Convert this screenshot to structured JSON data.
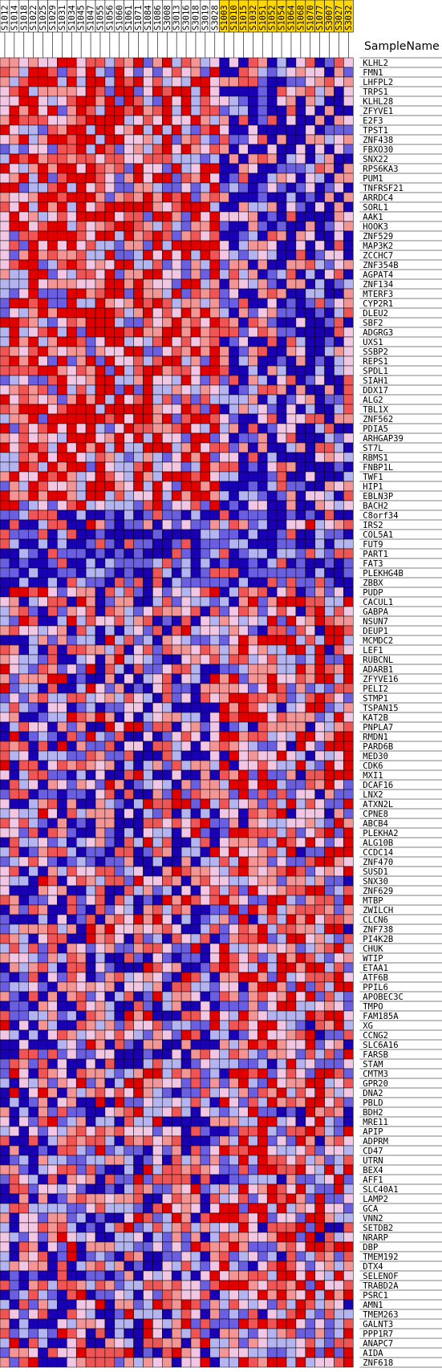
{
  "chart_data": {
    "type": "heatmap",
    "header_label": "SampleName",
    "samples": {
      "group_a": [
        "S1012",
        "S1014",
        "S1018",
        "S1022",
        "S1025",
        "S1029",
        "S1031",
        "S1034",
        "S1045",
        "S1047",
        "S1055",
        "S1056",
        "S1060",
        "S1061",
        "S1071",
        "S1084",
        "S1086",
        "S3008",
        "S3013",
        "S3016",
        "S3018",
        "S3019",
        "S3028"
      ],
      "group_b": [
        "S1003",
        "S1010",
        "S1015",
        "S1032",
        "S1051",
        "S1052",
        "S1054",
        "S1064",
        "S1068",
        "S1070",
        "S1077",
        "S3007",
        "S3027",
        "S3032"
      ]
    },
    "genes": [
      "KLHL2",
      "FMN1",
      "LHFPL2",
      "TRPS1",
      "KLHL28",
      "ZFYVE1",
      "E2F3",
      "TPST1",
      "ZNF438",
      "FBXO30",
      "SNX22",
      "RPS6KA3",
      "PUM1",
      "TNFRSF21",
      "ARRDC4",
      "SORL1",
      "AAK1",
      "HOOK3",
      "ZNF529",
      "MAP3K2",
      "ZCCHC7",
      "ZNF354B",
      "AGPAT4",
      "ZNF134",
      "MTERF3",
      "CYP2R1",
      "DLEU2",
      "SBF2",
      "ADGRG3",
      "UXS1",
      "SSBP2",
      "REPS1",
      "SPDL1",
      "SIAH1",
      "DDX17",
      "ALG2",
      "TBL1X",
      "ZNF562",
      "PDIA5",
      "ARHGAP39",
      "ST7L",
      "RBMS1",
      "FNBP1L",
      "TWF1",
      "HIP1",
      "EBLN3P",
      "BACH2",
      "C8orf34",
      "IRS2",
      "COL5A1",
      "FUT9",
      "PART1",
      "FAT3",
      "PLEKHG4B",
      "ZBBX",
      "PUDP",
      "CACUL1",
      "GABPA",
      "NSUN7",
      "DEUP1",
      "MCMDC2",
      "LEF1",
      "RUBCNL",
      "ADARB1",
      "ZFYVE16",
      "PELI2",
      "STMP1",
      "TSPAN15",
      "KAT2B",
      "PNPLA7",
      "RMDN1",
      "PARD6B",
      "MED30",
      "CDK6",
      "MXI1",
      "DCAF16",
      "LNX2",
      "ATXN2L",
      "CPNE8",
      "ABCB4",
      "PLEKHA2",
      "ALG10B",
      "CCDC14",
      "ZNF470",
      "SUSD1",
      "SNX30",
      "ZNF629",
      "MTBP",
      "ZWILCH",
      "CLCN6",
      "ZNF738",
      "PI4K2B",
      "CHUK",
      "WTIP",
      "ETAA1",
      "ATF6B",
      "PPIL6",
      "APOBEC3C",
      "TMPO",
      "FAM185A",
      "XG",
      "CCNG2",
      "SLC6A16",
      "FARSB",
      "STAM",
      "CMTM3",
      "GPR20",
      "DNA2",
      "PBLD",
      "BDH2",
      "MRE11",
      "APIP",
      "ADPRM",
      "CD47",
      "UTRN",
      "BEX4",
      "AFF1",
      "SLC40A1",
      "LAMP2",
      "GCA",
      "VNN2",
      "SETDB2",
      "NRARP",
      "DBP",
      "TMEM192",
      "DTX4",
      "SELENOF",
      "TRABD2A",
      "PSRC1",
      "AMN1",
      "TMEM263",
      "GALNT3",
      "PPP1R7",
      "ANAPC7",
      "AIDA",
      "ZNF618"
    ],
    "color_scale": [
      "#1a00b3",
      "#6a5fe0",
      "#b4b4f0",
      "#f2c7e3",
      "#f49595",
      "#f05555",
      "#e10000"
    ],
    "group_b_header_color": "#ffd700",
    "value_range": [
      -3,
      3
    ]
  }
}
